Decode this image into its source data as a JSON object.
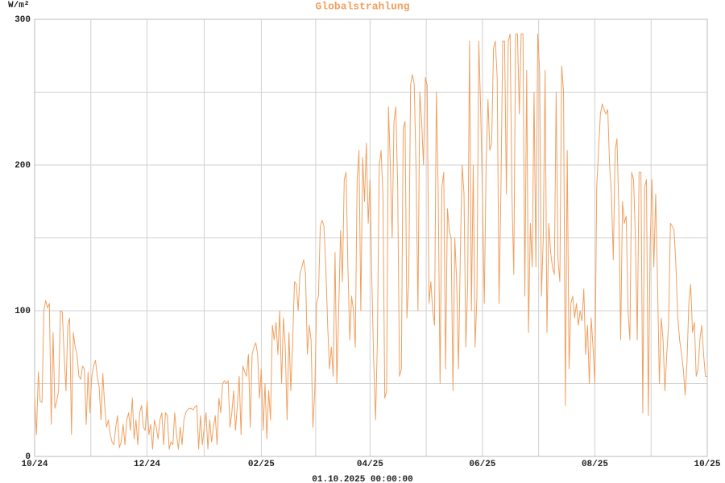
{
  "chart_data": {
    "type": "line",
    "title": "Globalstrahlung",
    "y_label": "W/m²",
    "footer": "01.10.2025 00:00:00",
    "color": "#f0a060",
    "grid": true,
    "ylim": [
      0,
      300
    ],
    "yticks": [
      0,
      100,
      200,
      300
    ],
    "categories": [
      "10/24",
      null,
      null,
      null,
      null,
      null,
      null,
      null,
      null,
      null,
      null,
      null,
      null,
      null,
      null,
      null,
      null,
      null,
      null,
      null,
      null,
      null,
      null,
      null,
      null,
      null,
      null,
      null,
      null,
      null,
      null,
      null,
      null,
      null,
      null,
      null,
      null,
      null,
      null,
      null,
      null,
      null,
      null,
      null,
      null,
      null,
      null,
      null,
      null,
      null,
      null,
      null,
      null,
      null,
      null,
      null,
      null,
      null,
      null,
      null,
      null,
      "12/24",
      null,
      null,
      null,
      null,
      null,
      null,
      null,
      null,
      null,
      null,
      null,
      null,
      null,
      null,
      null,
      null,
      null,
      null,
      null,
      null,
      null,
      null,
      null,
      null,
      null,
      null,
      null,
      null,
      null,
      null,
      null,
      null,
      null,
      null,
      null,
      null,
      null,
      null,
      null,
      null,
      null,
      null,
      null,
      null,
      null,
      null,
      null,
      null,
      null,
      null,
      null,
      null,
      null,
      null,
      null,
      null,
      null,
      null,
      null,
      null,
      null,
      "02/25",
      null,
      null,
      null,
      null,
      null,
      null,
      null,
      null,
      null,
      null,
      null,
      null,
      null,
      null,
      null,
      null,
      null,
      null,
      null,
      null,
      null,
      null,
      null,
      null,
      null,
      null,
      null,
      null,
      null,
      null,
      null,
      null,
      null,
      null,
      null,
      null,
      null,
      null,
      null,
      null,
      null,
      null,
      null,
      null,
      null,
      null,
      null,
      null,
      null,
      null,
      null,
      null,
      null,
      null,
      null,
      null,
      null,
      null,
      "04/25",
      null,
      null,
      null,
      null,
      null,
      null,
      null,
      null,
      null,
      null,
      null,
      null,
      null,
      null,
      null,
      null,
      null,
      null,
      null,
      null,
      null,
      null,
      null,
      null,
      null,
      null,
      null,
      null,
      null,
      null,
      null,
      null,
      null,
      null,
      null,
      null,
      null,
      null,
      null,
      null,
      null,
      null,
      null,
      null,
      null,
      null,
      null,
      null,
      null,
      null,
      null,
      null,
      null,
      null,
      null,
      null,
      null,
      null,
      null,
      null,
      "06/25",
      null,
      null,
      null,
      null,
      null,
      null,
      null,
      null,
      null,
      null,
      null,
      null,
      null,
      null,
      null,
      null,
      null,
      null,
      null,
      null,
      null,
      null,
      null,
      null,
      null,
      null,
      null,
      null,
      null,
      null,
      null,
      null,
      null,
      null,
      null,
      null,
      null,
      null,
      null,
      null,
      null,
      null,
      null,
      null,
      null,
      null,
      null,
      null,
      null,
      null,
      null,
      null,
      null,
      null,
      null,
      null,
      null,
      null,
      null,
      null,
      "08/25",
      null,
      null,
      null,
      null,
      null,
      null,
      null,
      null,
      null,
      null,
      null,
      null,
      null,
      null,
      null,
      null,
      null,
      null,
      null,
      null,
      null,
      null,
      null,
      null,
      null,
      null,
      null,
      null,
      null,
      null,
      null,
      null,
      null,
      null,
      null,
      null,
      null,
      null,
      null,
      null,
      null,
      null,
      null,
      null,
      null,
      null,
      null,
      null,
      null,
      null,
      null,
      null,
      null,
      null,
      null,
      null,
      null,
      null,
      null,
      null,
      "10/25"
    ],
    "values": [
      40,
      15,
      58,
      38,
      37,
      100,
      107,
      102,
      105,
      22,
      85,
      33,
      38,
      45,
      100,
      99,
      70,
      45,
      90,
      95,
      15,
      85,
      75,
      70,
      55,
      53,
      62,
      60,
      22,
      58,
      30,
      55,
      62,
      66,
      55,
      48,
      25,
      57,
      35,
      20,
      25,
      15,
      10,
      8,
      20,
      28,
      6,
      10,
      22,
      8,
      25,
      30,
      18,
      40,
      12,
      25,
      8,
      30,
      35,
      20,
      18,
      38,
      15,
      22,
      5,
      25,
      20,
      12,
      25,
      30,
      8,
      30,
      28,
      5,
      10,
      8,
      30,
      15,
      5,
      20,
      8,
      25,
      30,
      32,
      33,
      33,
      32,
      34,
      35,
      5,
      28,
      8,
      20,
      30,
      5,
      25,
      10,
      20,
      28,
      8,
      40,
      30,
      50,
      52,
      50,
      52,
      20,
      30,
      45,
      18,
      35,
      55,
      15,
      62,
      58,
      55,
      70,
      20,
      70,
      75,
      78,
      70,
      40,
      60,
      18,
      50,
      12,
      45,
      25,
      90,
      80,
      92,
      70,
      100,
      50,
      95,
      75,
      25,
      85,
      45,
      78,
      120,
      118,
      100,
      125,
      130,
      135,
      125,
      70,
      90,
      80,
      20,
      45,
      105,
      110,
      158,
      162,
      158,
      130,
      90,
      60,
      75,
      55,
      140,
      50,
      100,
      155,
      120,
      190,
      195,
      130,
      80,
      110,
      100,
      75,
      190,
      210,
      100,
      205,
      175,
      215,
      160,
      190,
      120,
      65,
      25,
      80,
      200,
      210,
      180,
      40,
      45,
      240,
      200,
      150,
      230,
      240,
      185,
      55,
      60,
      225,
      230,
      95,
      120,
      255,
      262,
      255,
      195,
      100,
      250,
      230,
      200,
      260,
      255,
      105,
      120,
      100,
      90,
      250,
      180,
      50,
      185,
      195,
      60,
      170,
      155,
      150,
      45,
      150,
      120,
      60,
      140,
      200,
      180,
      75,
      120,
      285,
      100,
      200,
      75,
      110,
      285,
      240,
      180,
      105,
      200,
      245,
      210,
      215,
      280,
      285,
      260,
      105,
      180,
      285,
      285,
      180,
      285,
      290,
      180,
      125,
      290,
      290,
      235,
      290,
      290,
      110,
      265,
      85,
      160,
      130,
      250,
      130,
      290,
      265,
      110,
      150,
      265,
      85,
      160,
      140,
      130,
      125,
      250,
      135,
      120,
      268,
      250,
      35,
      210,
      60,
      105,
      110,
      95,
      105,
      90,
      100,
      93,
      115,
      70,
      90,
      50,
      95,
      75,
      50,
      185,
      210,
      235,
      242,
      238,
      235,
      238,
      200,
      180,
      135,
      210,
      218,
      170,
      80,
      175,
      160,
      165,
      100,
      80,
      195,
      190,
      150,
      80,
      195,
      195,
      30,
      185,
      190,
      28,
      145,
      190,
      130,
      180,
      120,
      50,
      95,
      80,
      45,
      70,
      90,
      160,
      158,
      155,
      130,
      95,
      80,
      70,
      60,
      42,
      65,
      105,
      118,
      85,
      92,
      55,
      60,
      80,
      90,
      70,
      55,
      55
    ]
  }
}
